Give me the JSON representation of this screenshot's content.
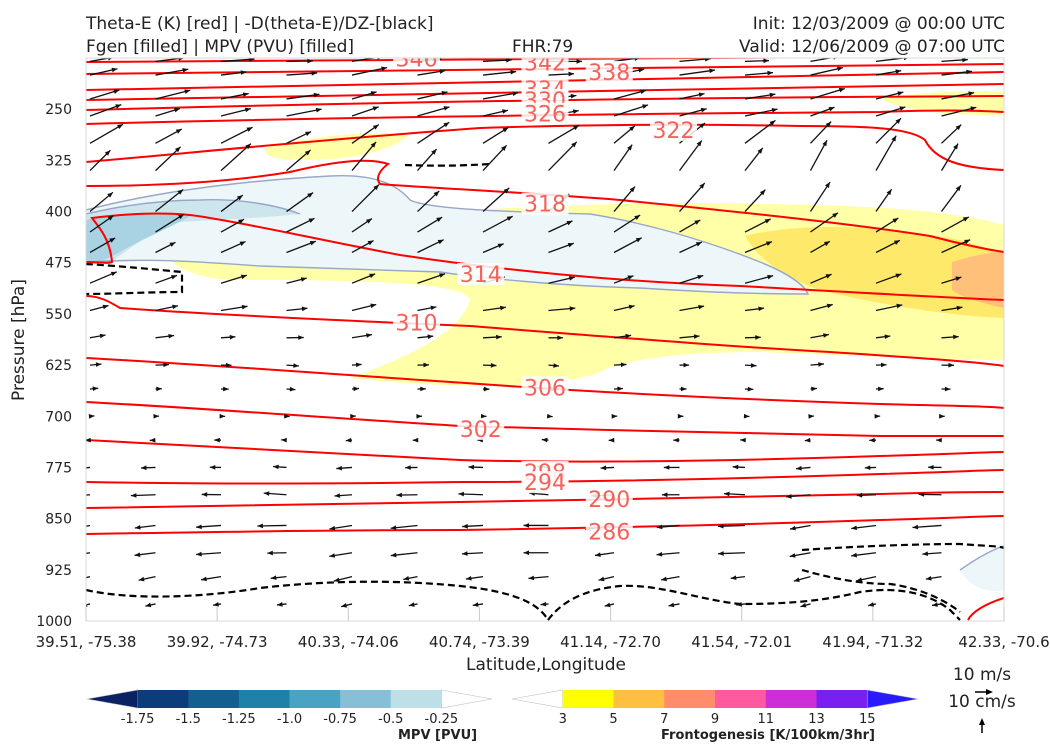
{
  "header": {
    "title_line1": "Theta-E (K) [red] | -D(theta-E)/DZ-[black]",
    "title_line2": "Fgen [filled] | MPV (PVU) [filled]",
    "fhr": "FHR:79",
    "init": "Init: 12/03/2009 @ 00:00 UTC",
    "valid": "Valid: 12/06/2009 @ 07:00 UTC"
  },
  "chart_data": {
    "type": "cross-section",
    "xlabel": "Latitude,Longitude",
    "ylabel": "Pressure [hPa]",
    "x_ticks": [
      "39.51, -75.38",
      "39.92, -74.73",
      "40.33, -74.06",
      "40.74, -73.39",
      "41.14, -72.70",
      "41.54, -72.01",
      "41.94, -71.32",
      "42.33, -70.6"
    ],
    "y_ticks": [
      "250",
      "325",
      "400",
      "475",
      "550",
      "625",
      "700",
      "775",
      "850",
      "925",
      "1000"
    ],
    "ylim": [
      1000,
      175
    ],
    "y_inverted": true,
    "theta_e_contours": {
      "color": "#ff0000",
      "labels": [
        {
          "text": "346",
          "x": 0.36,
          "p": 177
        },
        {
          "text": "342",
          "x": 0.5,
          "p": 183
        },
        {
          "text": "338",
          "x": 0.57,
          "p": 197
        },
        {
          "text": "334",
          "x": 0.5,
          "p": 222
        },
        {
          "text": "330",
          "x": 0.5,
          "p": 238
        },
        {
          "text": "326",
          "x": 0.5,
          "p": 258
        },
        {
          "text": "322",
          "x": 0.64,
          "p": 282
        },
        {
          "text": "318",
          "x": 0.5,
          "p": 390
        },
        {
          "text": "314",
          "x": 0.43,
          "p": 493
        },
        {
          "text": "310",
          "x": 0.36,
          "p": 564
        },
        {
          "text": "306",
          "x": 0.5,
          "p": 659
        },
        {
          "text": "302",
          "x": 0.43,
          "p": 720
        },
        {
          "text": "298",
          "x": 0.5,
          "p": 783
        },
        {
          "text": "294",
          "x": 0.5,
          "p": 798
        },
        {
          "text": "290",
          "x": 0.57,
          "p": 823
        },
        {
          "text": "286",
          "x": 0.57,
          "p": 870
        }
      ]
    },
    "wind_reference": {
      "u_label": "10 m/s",
      "w_label": "10 cm/s"
    },
    "colorbars": [
      {
        "title": "MPV [PVU]",
        "ticks": [
          "-1.75",
          "-1.5",
          "-1.25",
          "-1.0",
          "-0.75",
          "-0.5",
          "-0.25"
        ],
        "colors": [
          "#0a2163",
          "#0b3d7a",
          "#155f8e",
          "#1f80a8",
          "#4aa3c4",
          "#86bfd6",
          "#bddfe8",
          "#ffffff"
        ]
      },
      {
        "title": "Frontogenesis [K/100km/3hr]",
        "ticks": [
          "3",
          "5",
          "7",
          "9",
          "11",
          "13",
          "15"
        ],
        "colors": [
          "#ffffff",
          "#ffff00",
          "#ffbf40",
          "#ff8c6b",
          "#ff5aa0",
          "#cc2fd6",
          "#7a1ff2",
          "#2a1aff"
        ]
      }
    ]
  }
}
